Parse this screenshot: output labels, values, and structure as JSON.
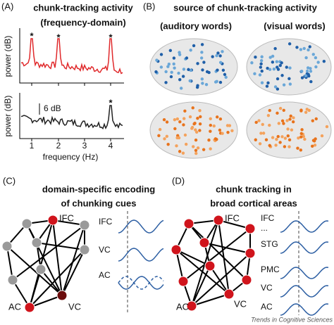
{
  "panel_a": {
    "label": "(A)",
    "title": "chunk-tracking activity",
    "subtitle": "(frequency-domain)",
    "y_label_top": "power (dB)",
    "y_label_bottom": "power (dB)",
    "scale_bar": "6 dB",
    "x_ticks": [
      "1",
      "2",
      "3",
      "4"
    ],
    "x_label": "frequency (Hz)",
    "peak_marker": "*"
  },
  "panel_b": {
    "label": "(B)",
    "title": "source of chunk-tracking activity",
    "left_label": "(auditory words)",
    "right_label": "(visual words)"
  },
  "panel_c": {
    "label": "(C)",
    "title_line1": "domain-specific encoding",
    "title_line2": "of chunking cues",
    "nodes": [
      "IFC",
      "AC",
      "VC"
    ],
    "waves": [
      "IFC",
      "VC",
      "AC"
    ]
  },
  "panel_d": {
    "label": "(D)",
    "title_line1": "chunk tracking in",
    "title_line2": "broad cortical areas",
    "nodes": [
      "IFC",
      "AC",
      "VC"
    ],
    "waves": [
      "IFC",
      "...",
      "STG",
      "PMC",
      "VC",
      "AC"
    ]
  },
  "footer": "Trends in Cognitive Sciences"
}
